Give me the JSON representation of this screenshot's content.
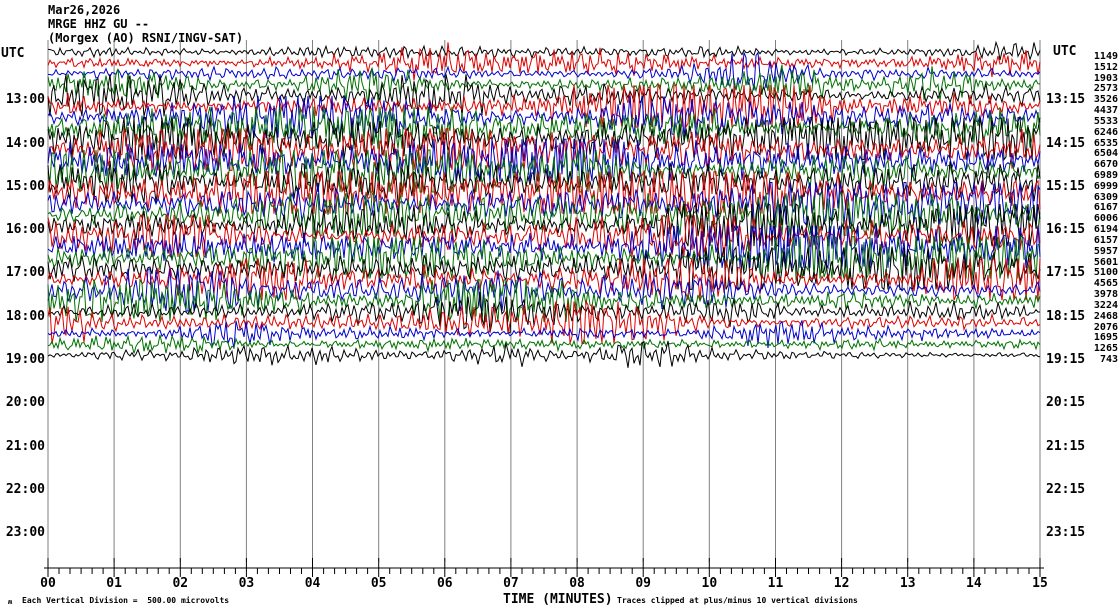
{
  "header": {
    "date": "Mar26,2026",
    "station": "MRGE HHZ GU --",
    "location": "(Morgex (AO) RSNI/INGV-SAT)"
  },
  "axis": {
    "left_header": "UTC",
    "right_header": "UTC",
    "left_labels": [
      "13:00",
      "14:00",
      "15:00",
      "16:00",
      "17:00",
      "18:00",
      "19:00",
      "20:00",
      "21:00",
      "22:00",
      "23:00"
    ],
    "right_labels": [
      "13:15",
      "14:15",
      "15:15",
      "16:15",
      "17:15",
      "18:15",
      "19:15",
      "20:15",
      "21:15",
      "22:15",
      "23:15"
    ],
    "x_tick_labels": [
      "00",
      "01",
      "02",
      "03",
      "04",
      "05",
      "06",
      "07",
      "08",
      "09",
      "10",
      "11",
      "12",
      "13",
      "14",
      "15"
    ],
    "xlabel": "TIME (MINUTES)"
  },
  "footer": {
    "corner_mark": "ʍ",
    "scale_note": "Each Vertical Division =  500.00 microvolts",
    "clip_note": "Traces clipped at plus/minus 10 vertical divisions"
  },
  "chart_data": {
    "type": "line",
    "title": "MRGE HHZ GU -- (Morgex (AO) RSNI/INGV-SAT) Mar26,2026 helicorder",
    "xlabel": "TIME (MINUTES)",
    "x_range_minutes": [
      0,
      15
    ],
    "minutes_per_line": 15,
    "minor_ticks_per_minute": 6,
    "vertical_division_microvolts": 500.0,
    "clip_divisions": 10,
    "grid": "vertical gray line every 1 minute",
    "trace_color_cycle": [
      "black",
      "red",
      "blue",
      "green"
    ],
    "colors": {
      "black": "#000000",
      "red": "#dd0000",
      "blue": "#0000cc",
      "green": "#007000",
      "grid": "#808080"
    },
    "first_line_start_utc": "12:00",
    "last_line_start_utc": "19:00",
    "blank_lines_after": "19:15 through 23:45",
    "rows": [
      {
        "start": "12:00",
        "end": "12:15",
        "color": "black",
        "max_amplitude": 1149
      },
      {
        "start": "12:15",
        "end": "12:30",
        "color": "red",
        "max_amplitude": 1512
      },
      {
        "start": "12:30",
        "end": "12:45",
        "color": "blue",
        "max_amplitude": 1903
      },
      {
        "start": "12:45",
        "end": "13:00",
        "color": "green",
        "max_amplitude": 2573
      },
      {
        "start": "13:00",
        "end": "13:15",
        "color": "black",
        "max_amplitude": 3526
      },
      {
        "start": "13:15",
        "end": "13:30",
        "color": "red",
        "max_amplitude": 4437
      },
      {
        "start": "13:30",
        "end": "13:45",
        "color": "blue",
        "max_amplitude": 5533
      },
      {
        "start": "13:45",
        "end": "14:00",
        "color": "green",
        "max_amplitude": 6246
      },
      {
        "start": "14:00",
        "end": "14:15",
        "color": "black",
        "max_amplitude": 6535
      },
      {
        "start": "14:15",
        "end": "14:30",
        "color": "red",
        "max_amplitude": 6504
      },
      {
        "start": "14:30",
        "end": "14:45",
        "color": "blue",
        "max_amplitude": 6670
      },
      {
        "start": "14:45",
        "end": "15:00",
        "color": "green",
        "max_amplitude": 6989
      },
      {
        "start": "15:00",
        "end": "15:15",
        "color": "black",
        "max_amplitude": 6999
      },
      {
        "start": "15:15",
        "end": "15:30",
        "color": "red",
        "max_amplitude": 6309
      },
      {
        "start": "15:30",
        "end": "15:45",
        "color": "blue",
        "max_amplitude": 6167
      },
      {
        "start": "15:45",
        "end": "16:00",
        "color": "green",
        "max_amplitude": 6006
      },
      {
        "start": "16:00",
        "end": "16:15",
        "color": "black",
        "max_amplitude": 6194
      },
      {
        "start": "16:15",
        "end": "16:30",
        "color": "red",
        "max_amplitude": 6157
      },
      {
        "start": "16:30",
        "end": "16:45",
        "color": "blue",
        "max_amplitude": 5957
      },
      {
        "start": "16:45",
        "end": "17:00",
        "color": "green",
        "max_amplitude": 5601
      },
      {
        "start": "17:00",
        "end": "17:15",
        "color": "black",
        "max_amplitude": 5100
      },
      {
        "start": "17:15",
        "end": "17:30",
        "color": "red",
        "max_amplitude": 4565
      },
      {
        "start": "17:30",
        "end": "17:45",
        "color": "blue",
        "max_amplitude": 3978
      },
      {
        "start": "17:45",
        "end": "18:00",
        "color": "green",
        "max_amplitude": 3224
      },
      {
        "start": "18:00",
        "end": "18:15",
        "color": "black",
        "max_amplitude": 2468
      },
      {
        "start": "18:15",
        "end": "18:30",
        "color": "red",
        "max_amplitude": 2076
      },
      {
        "start": "18:30",
        "end": "18:45",
        "color": "blue",
        "max_amplitude": 1695
      },
      {
        "start": "18:45",
        "end": "19:00",
        "color": "green",
        "max_amplitude": 1265
      },
      {
        "start": "19:00",
        "end": "19:15",
        "color": "black",
        "max_amplitude": 743
      }
    ]
  }
}
